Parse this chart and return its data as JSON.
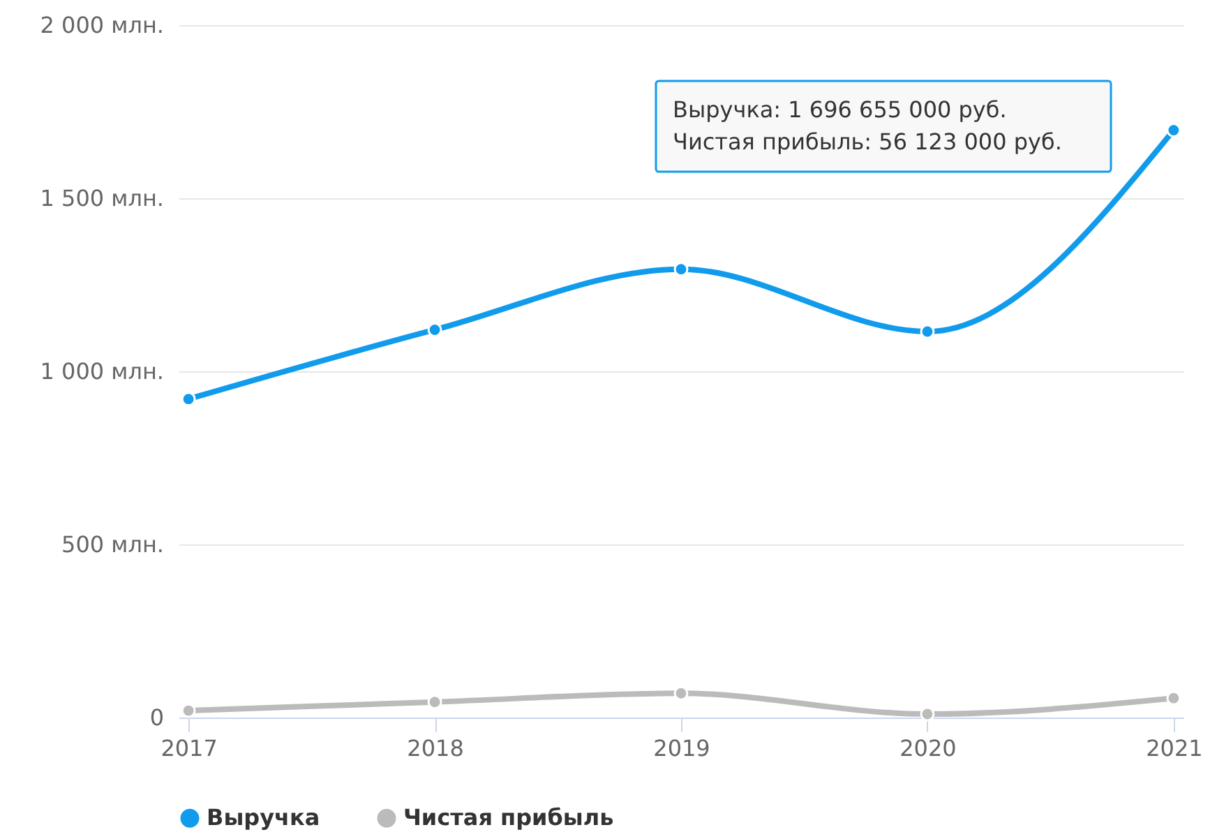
{
  "chart_data": {
    "type": "line",
    "categories": [
      "2017",
      "2018",
      "2019",
      "2020",
      "2021"
    ],
    "series": [
      {
        "name": "Выручка",
        "color": "#119bec",
        "values": [
          920,
          1120,
          1295,
          1115,
          1696.655
        ]
      },
      {
        "name": "Чистая прибыль",
        "color": "#bbbbbb",
        "values": [
          20,
          45,
          70,
          10,
          56.123
        ]
      }
    ],
    "ylim": [
      0,
      2000
    ],
    "yticks": [
      0,
      {
        "value": 500,
        "label": "500 млн."
      },
      {
        "value": 1000,
        "label": "1 000 млн."
      },
      {
        "value": 1500,
        "label": "1 500 млн."
      },
      {
        "value": 2000,
        "label": "2 000 млн."
      }
    ],
    "grid": "y",
    "legend": "bottom",
    "marker": "circle",
    "line_style": "solid",
    "annotations": [
      "Выручка: 1 696 655 000 руб.",
      "Чистая прибыль: 56 123 000 руб."
    ]
  }
}
